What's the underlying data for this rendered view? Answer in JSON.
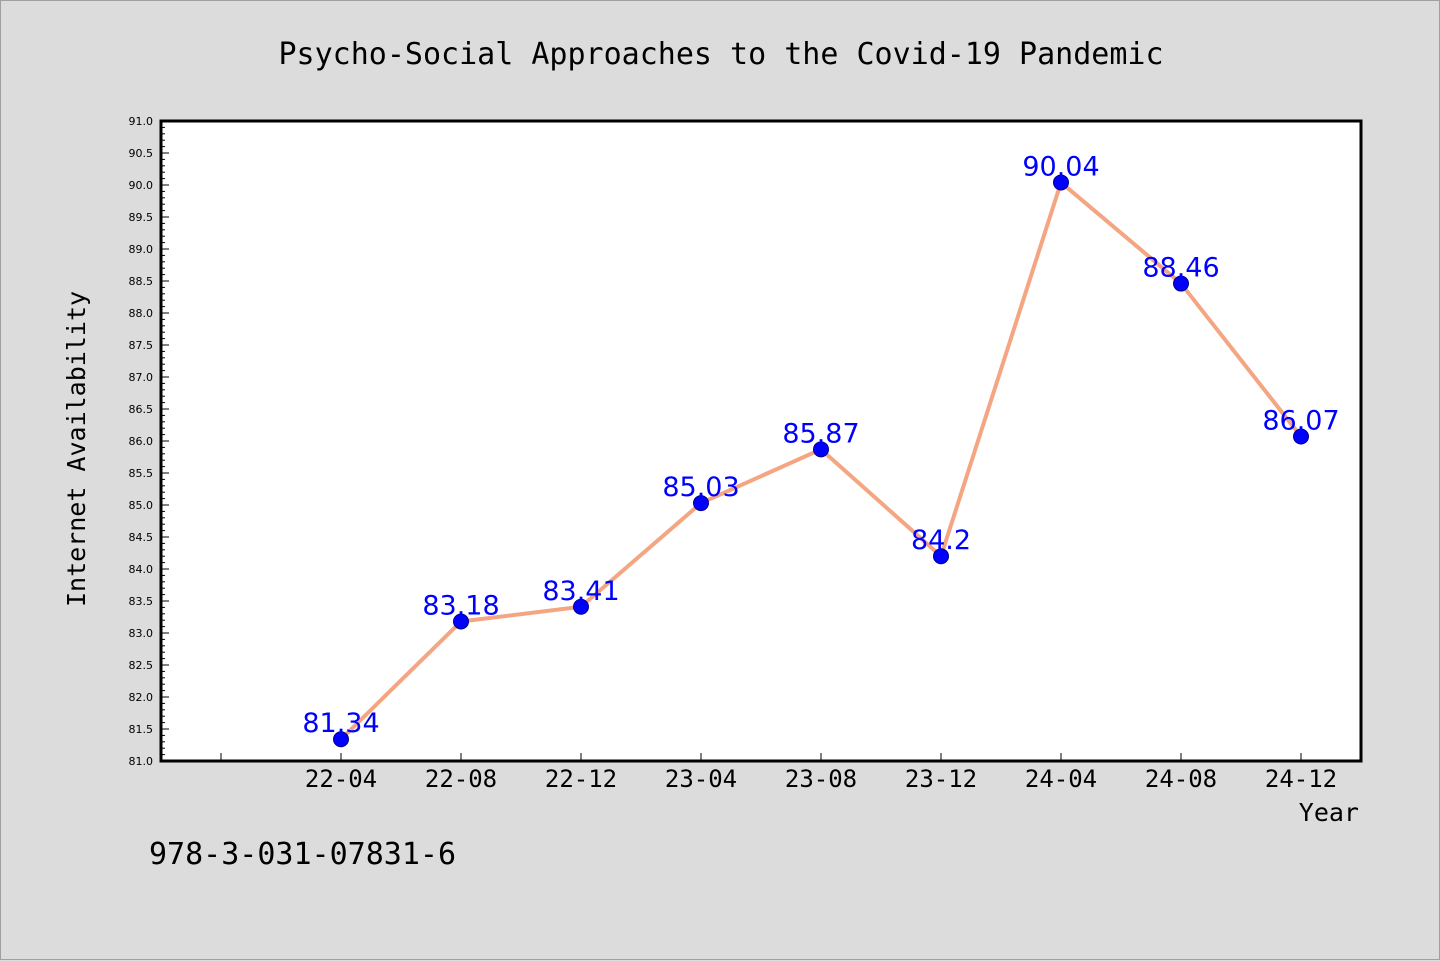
{
  "chart_data": {
    "type": "line",
    "title": "Psycho-Social Approaches to the Covid-19 Pandemic",
    "xlabel": "Year",
    "ylabel": "Internet Availability",
    "categories": [
      "22-04",
      "22-08",
      "22-12",
      "23-04",
      "23-08",
      "23-12",
      "24-04",
      "24-08",
      "24-12"
    ],
    "series": [
      {
        "values": [
          81.34,
          83.18,
          83.41,
          85.03,
          85.87,
          84.2,
          90.04,
          88.46,
          86.07
        ],
        "data_labels": [
          "81.34",
          "83.18",
          "83.41",
          "85.03",
          "85.87",
          "84.2",
          "90.04",
          "88.46",
          "86.07"
        ]
      }
    ],
    "ylim": [
      81.0,
      91.0
    ],
    "yticks": [
      "81.0",
      "81.5",
      "82.0",
      "82.5",
      "83.0",
      "83.5",
      "84.0",
      "84.5",
      "85.0",
      "85.5",
      "86.0",
      "86.5",
      "87.0",
      "87.5",
      "88.0",
      "88.5",
      "89.0",
      "89.5",
      "90.0",
      "90.5",
      "91.0"
    ],
    "grid": false,
    "legend": "none",
    "colors": {
      "line": "#f4a582",
      "marker": "#0000ff",
      "label": "#0000ff",
      "plot_bg": "#ffffff",
      "page_bg": "#dcdcdc"
    }
  },
  "footer": {
    "isbn": "978-3-031-07831-6"
  }
}
